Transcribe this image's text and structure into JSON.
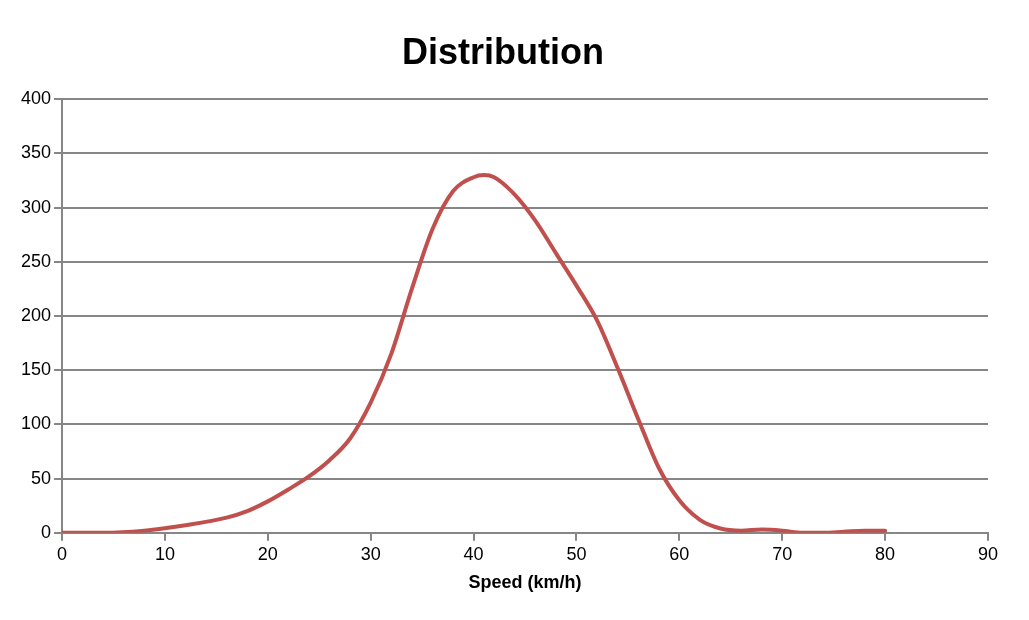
{
  "chart_data": {
    "type": "line",
    "title": "Distribution",
    "xlabel": "Speed (km/h)",
    "x": [
      0,
      4,
      8,
      12,
      16,
      18,
      20,
      22,
      24,
      26,
      28,
      30,
      32,
      34,
      36,
      38,
      40,
      41,
      42,
      44,
      46,
      48,
      50,
      52,
      54,
      56,
      58,
      60,
      62,
      64,
      66,
      68,
      70,
      72,
      74,
      76,
      78,
      80
    ],
    "series": [
      {
        "color": "#c0504d",
        "values": [
          0,
          0,
          2,
          7,
          14,
          20,
          29,
          40,
          52,
          67,
          87,
          120,
          165,
          225,
          280,
          315,
          328,
          330,
          328,
          312,
          288,
          258,
          228,
          196,
          152,
          105,
          60,
          30,
          12,
          4,
          2,
          3,
          2,
          0,
          0,
          1,
          2,
          2
        ]
      }
    ],
    "xlim": [
      0,
      90
    ],
    "xticks": [
      0,
      10,
      20,
      30,
      40,
      50,
      60,
      70,
      80,
      90
    ],
    "ylim": [
      0,
      400
    ],
    "yticks": [
      0,
      50,
      100,
      150,
      200,
      250,
      300,
      350,
      400
    ],
    "grid": "y",
    "legend": false,
    "marker": "none",
    "line_style": "solid"
  }
}
